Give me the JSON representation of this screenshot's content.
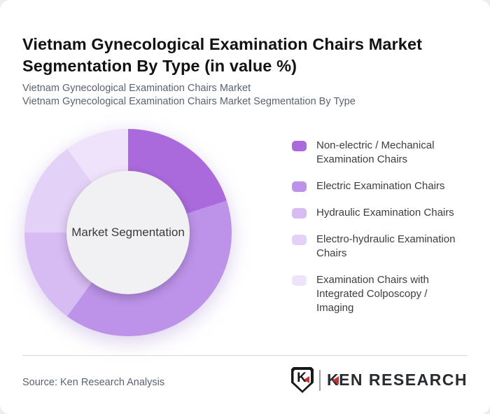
{
  "page": {
    "title": "Vietnam Gynecological Examination Chairs Market Segmentation By Type (in value %)",
    "subtitle_line1": "Vietnam Gynecological Examination Chairs Market",
    "subtitle_line2": "Vietnam Gynecological Examination Chairs Market Segmentation By Type",
    "source": "Source: Ken Research Analysis"
  },
  "logo": {
    "emblem_letter": "K",
    "wordmark_first_letter": "K",
    "wordmark_rest": "EN RESEARCH",
    "accent_color": "#cf2e2e"
  },
  "chart_data": {
    "type": "pie",
    "donut": true,
    "title": "Vietnam Gynecological Examination Chairs Market Segmentation By Type (in value %)",
    "center_label": "Market Segmentation",
    "units": "value %",
    "start_angle_deg": 0,
    "direction": "clockwise",
    "legend_position": "right",
    "inner_radius_ratio": 0.595,
    "segments": [
      {
        "label": "Non-electric / Mechanical Examination Chairs",
        "value": 20,
        "color": "#aa6adc"
      },
      {
        "label": "Electric Examination Chairs",
        "value": 40,
        "color": "#bd93ea"
      },
      {
        "label": "Hydraulic Examination Chairs",
        "value": 15,
        "color": "#d7bbf3"
      },
      {
        "label": "Electro-hydraulic Examination Chairs",
        "value": 15,
        "color": "#e4d1f7"
      },
      {
        "label": "Examination Chairs with Integrated Colposcopy / Imaging",
        "value": 10,
        "color": "#efe2fb"
      }
    ]
  }
}
